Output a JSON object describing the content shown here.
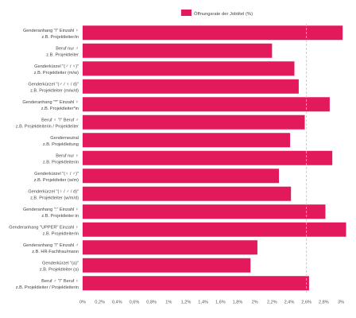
{
  "chart_data": {
    "type": "bar",
    "orientation": "horizontal",
    "legend": {
      "position": "top",
      "label": "Öffnungsrate der Jobtitel (%)"
    },
    "categories": [
      [
        "Genderanhang \"/\" Einzahl ♀",
        "z.B. Projektleiter/in"
      ],
      [
        "Beruf nur ♂",
        "z.B. Projektleiter"
      ],
      [
        "Genderkürzel \"(♂ / ♀)\"",
        "z.B. Projektleiter (m/w)"
      ],
      [
        "Genderkürzel \"(♂ / ♀ / d)\"",
        "z.B. Projektleiter (m/w/d)"
      ],
      [
        "Genderanhang \"*\" Einzahl ♀",
        "z.B. Projektleiter*in"
      ],
      [
        "Beruf ♀ \"/\" Beruf ♂",
        "z.B. Projektleiterin / Projektleiter"
      ],
      [
        "Genderneutral",
        "z.B. Projektleitung"
      ],
      [
        "Beruf nur ♀",
        "z.B. Projektleiterin"
      ],
      [
        "Genderkürzel \"(♀ / ♂)\"",
        "z.B. Projektleiter (w/m)"
      ],
      [
        "Genderkürzel \"(♀ / ♂ / d)\"",
        "z.B. Projektleiter (w/m/d)"
      ],
      [
        "Genderanhang \":\" Einzahl ♀",
        "z.B. Projektleiter:in"
      ],
      [
        "Genderanhang \"UPPER\" Einzahl ♀",
        "z.B. ProjektleiterIn"
      ],
      [
        "Genderanhang \"/\" Einzahl ♂",
        "z.B. HR-Fachfrau/mann"
      ],
      [
        "Genderkürzel \"(a)\"",
        "z.B. Projektleiter (a)"
      ],
      [
        "Beruf ♂ \"/\" Beruf ♀",
        "z.B. Projektleiter / Projektleiterin"
      ]
    ],
    "values": [
      3.02,
      2.2,
      2.46,
      2.51,
      2.87,
      2.58,
      2.41,
      2.9,
      2.28,
      2.42,
      2.82,
      3.06,
      2.03,
      1.95,
      2.63
    ],
    "xlim": [
      0,
      3.0
    ],
    "xticks": [
      "0%",
      "0,2%",
      "0,4%",
      "0,6%",
      "0,8%",
      "1%",
      "1,2%",
      "1,4%",
      "1,6%",
      "1,8%",
      "2%",
      "2,2%",
      "2,4%",
      "2,6%",
      "2,8%",
      "3%"
    ],
    "reference_line": 2.6,
    "colors": {
      "bar": "#e2195a",
      "reference_line": "#9a9a9a"
    }
  }
}
